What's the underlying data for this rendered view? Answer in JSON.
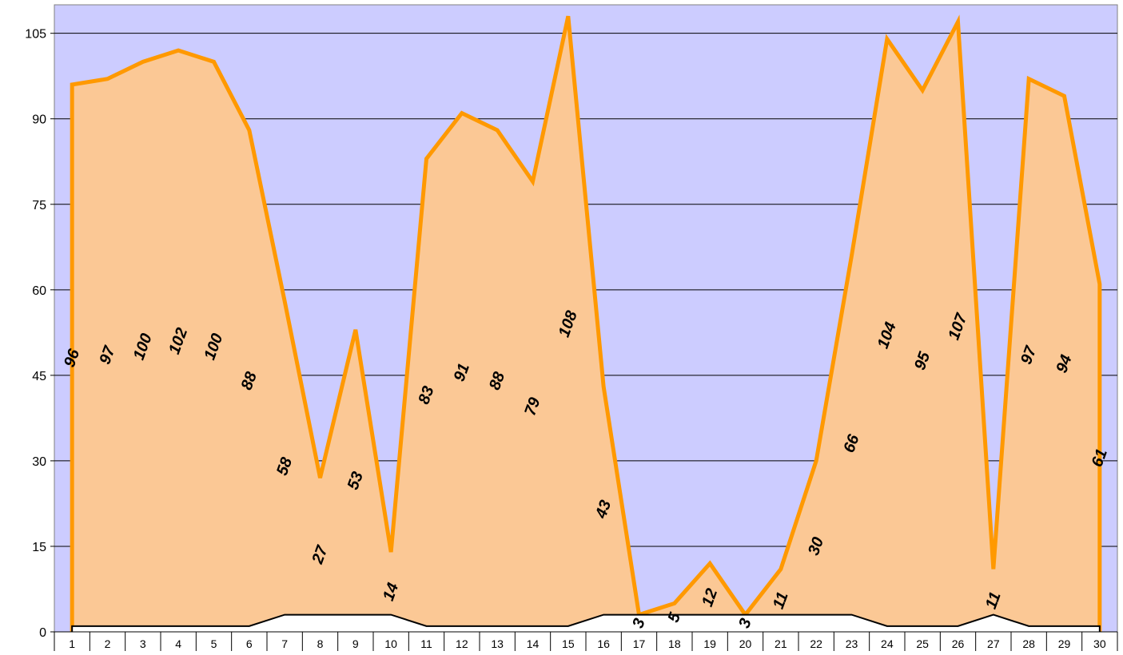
{
  "chart_data": {
    "type": "area",
    "categories": [
      "1",
      "2",
      "3",
      "4",
      "5",
      "6",
      "7",
      "8",
      "9",
      "10",
      "11",
      "12",
      "13",
      "14",
      "15",
      "16",
      "17",
      "18",
      "19",
      "20",
      "21",
      "22",
      "23",
      "24",
      "25",
      "26",
      "27",
      "28",
      "29",
      "30"
    ],
    "series": [
      {
        "values": [
          96,
          97,
          100,
          102,
          100,
          88,
          58,
          27,
          53,
          14,
          83,
          91,
          88,
          79,
          108,
          43,
          3,
          5,
          12,
          3,
          11,
          30,
          66,
          104,
          95,
          107,
          11,
          97,
          94,
          61
        ],
        "color": "#ff9900",
        "fill": "#fbc895"
      },
      {
        "values": [
          1,
          1,
          1,
          1,
          1,
          1,
          3,
          3,
          3,
          3,
          1,
          1,
          1,
          1,
          1,
          3,
          3,
          3,
          3,
          3,
          3,
          3,
          3,
          1,
          1,
          1,
          3,
          1,
          1,
          1
        ],
        "color": "#000000",
        "fill": "#ffffff"
      }
    ],
    "yticks": [
      "0",
      "15",
      "30",
      "45",
      "60",
      "75",
      "90",
      "105"
    ],
    "ylim": [
      0,
      110
    ],
    "grid": true,
    "plot_background": "#ccccff",
    "data_label_color": "#000000"
  }
}
